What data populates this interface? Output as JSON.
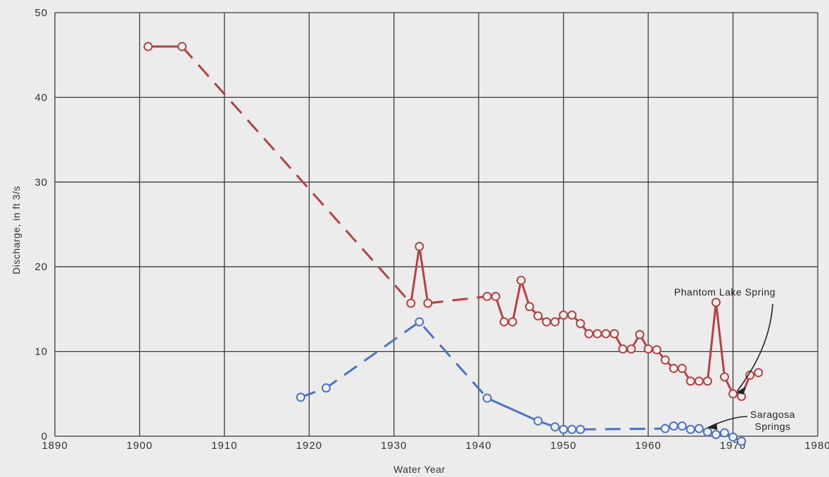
{
  "chart_data": {
    "type": "line",
    "xlabel": "Water Year",
    "ylabel": "Discharge, in ft 3/s",
    "xlim": [
      1890,
      1980
    ],
    "ylim": [
      0,
      50
    ],
    "xticks": [
      1890,
      1900,
      1910,
      1920,
      1930,
      1940,
      1950,
      1960,
      1970,
      1980
    ],
    "yticks": [
      0,
      10,
      20,
      30,
      40,
      50
    ],
    "grid": true,
    "series": [
      {
        "name": "Phantom Lake Spring",
        "color": "#b84040",
        "segments": [
          {
            "style": "solid",
            "points": [
              [
                1901,
                46
              ],
              [
                1905,
                46
              ]
            ]
          },
          {
            "style": "dashed",
            "points": [
              [
                1905,
                46
              ],
              [
                1932,
                15.7
              ]
            ]
          },
          {
            "style": "solid",
            "points": [
              [
                1932,
                15.7
              ],
              [
                1933,
                22.4
              ],
              [
                1934,
                15.7
              ]
            ]
          },
          {
            "style": "dashed",
            "points": [
              [
                1934,
                15.7
              ],
              [
                1941,
                16.5
              ]
            ]
          },
          {
            "style": "solid",
            "points": [
              [
                1941,
                16.5
              ],
              [
                1942,
                16.5
              ],
              [
                1943,
                13.5
              ],
              [
                1944,
                13.5
              ],
              [
                1945,
                18.4
              ],
              [
                1946,
                15.3
              ],
              [
                1947,
                14.2
              ],
              [
                1948,
                13.5
              ],
              [
                1949,
                13.5
              ],
              [
                1950,
                14.3
              ],
              [
                1951,
                14.3
              ],
              [
                1952,
                13.3
              ],
              [
                1953,
                12.1
              ],
              [
                1954,
                12.1
              ],
              [
                1955,
                12.1
              ],
              [
                1956,
                12.1
              ],
              [
                1957,
                10.3
              ],
              [
                1958,
                10.3
              ],
              [
                1959,
                12.0
              ],
              [
                1960,
                10.3
              ],
              [
                1961,
                10.2
              ],
              [
                1962,
                9.0
              ],
              [
                1963,
                8.0
              ],
              [
                1964,
                8.0
              ],
              [
                1965,
                6.5
              ],
              [
                1966,
                6.5
              ],
              [
                1967,
                6.5
              ],
              [
                1968,
                15.8
              ],
              [
                1969,
                7.0
              ],
              [
                1970,
                5.0
              ],
              [
                1971,
                4.7
              ],
              [
                1972,
                7.2
              ],
              [
                1973,
                7.5
              ]
            ]
          }
        ]
      },
      {
        "name": "Saragosa Springs",
        "color": "#4a72c8",
        "segments": [
          {
            "style": "dashed",
            "points": [
              [
                1919,
                4.6
              ],
              [
                1922,
                5.7
              ],
              [
                1933,
                13.5
              ],
              [
                1941,
                4.5
              ]
            ]
          },
          {
            "style": "solid",
            "points": [
              [
                1941,
                4.5
              ],
              [
                1947,
                1.8
              ],
              [
                1949,
                1.1
              ],
              [
                1950,
                0.8
              ],
              [
                1951,
                0.8
              ],
              [
                1952,
                0.8
              ]
            ]
          },
          {
            "style": "dashed",
            "points": [
              [
                1952,
                0.8
              ],
              [
                1962,
                0.9
              ]
            ]
          },
          {
            "style": "solid",
            "points": [
              [
                1962,
                0.9
              ],
              [
                1963,
                1.2
              ],
              [
                1964,
                1.2
              ],
              [
                1965,
                0.8
              ],
              [
                1966,
                0.9
              ],
              [
                1967,
                0.5
              ],
              [
                1968,
                0.2
              ],
              [
                1969,
                0.4
              ],
              [
                1970,
                -0.1
              ],
              [
                1971,
                -0.6
              ]
            ]
          }
        ]
      }
    ],
    "annotations": [
      {
        "lines": [
          "Phantom Lake Spring"
        ],
        "target": [
          1970,
          5.5
        ]
      },
      {
        "lines": [
          "Saragosa",
          "Springs"
        ],
        "target": [
          1966.5,
          1.0
        ]
      }
    ]
  }
}
